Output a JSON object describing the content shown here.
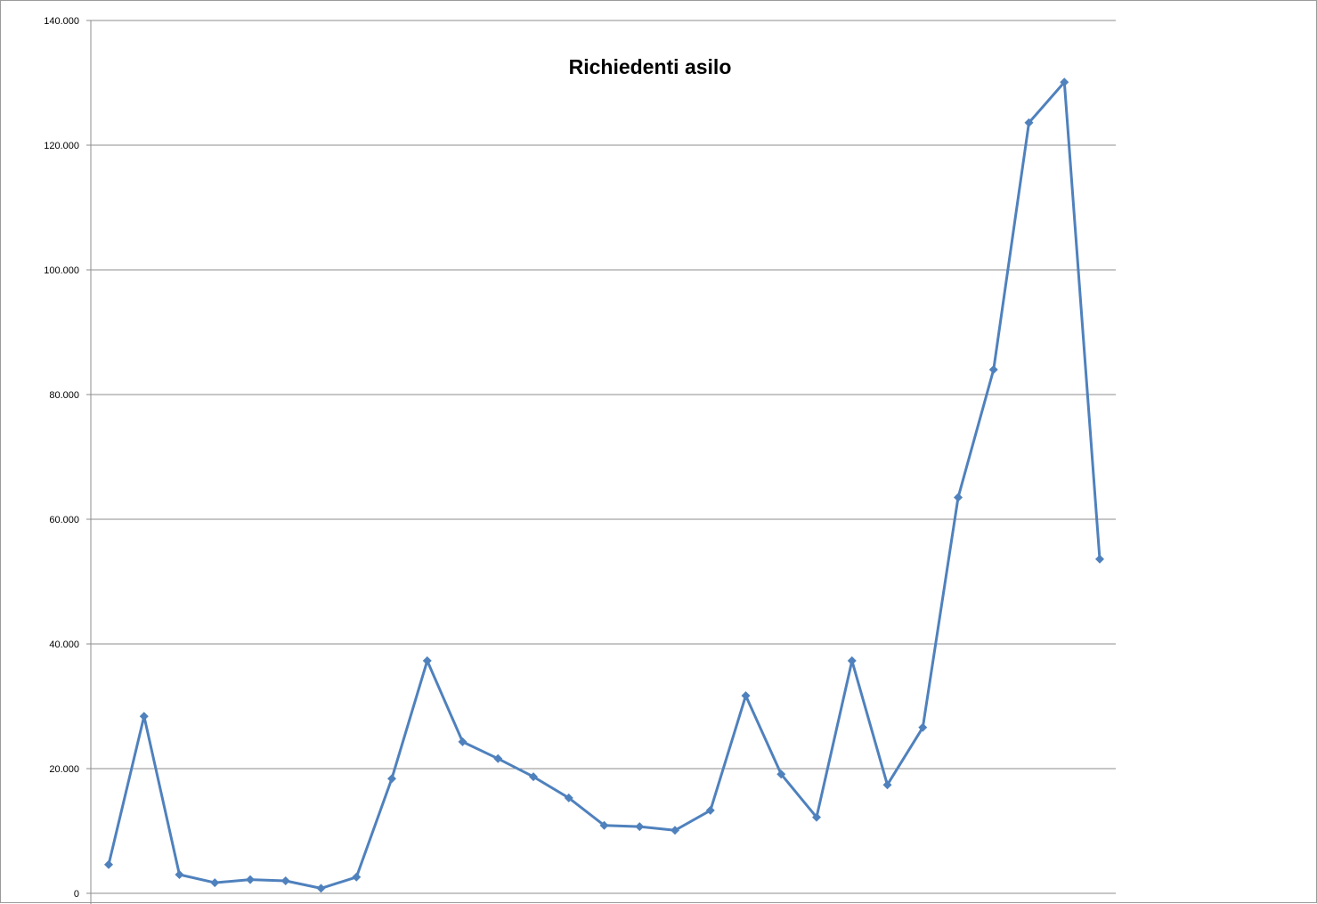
{
  "chart_data": {
    "type": "line",
    "title": "Richiedenti asilo",
    "xlabel": "",
    "ylabel": "",
    "ylim": [
      0,
      140000
    ],
    "y_ticks": [
      {
        "value": 0,
        "label": "0"
      },
      {
        "value": 20000,
        "label": "20.000"
      },
      {
        "value": 40000,
        "label": "40.000"
      },
      {
        "value": 60000,
        "label": "60.000"
      },
      {
        "value": 80000,
        "label": "80.000"
      },
      {
        "value": 100000,
        "label": "100.000"
      },
      {
        "value": 120000,
        "label": "120.000"
      },
      {
        "value": 140000,
        "label": "140.000"
      }
    ],
    "grid": true,
    "legend": "none",
    "colors": {
      "series": "#4F81BD",
      "grid": "#8c8c8c"
    },
    "series": [
      {
        "values": [
          4600,
          28400,
          3000,
          1700,
          2200,
          2000,
          800,
          2600,
          18400,
          37300,
          24300,
          21600,
          18700,
          15300,
          10900,
          10700,
          10100,
          13300,
          31700,
          19100,
          12200,
          37300,
          17400,
          26600,
          63500,
          84000,
          123600,
          130100,
          53600
        ]
      }
    ]
  }
}
